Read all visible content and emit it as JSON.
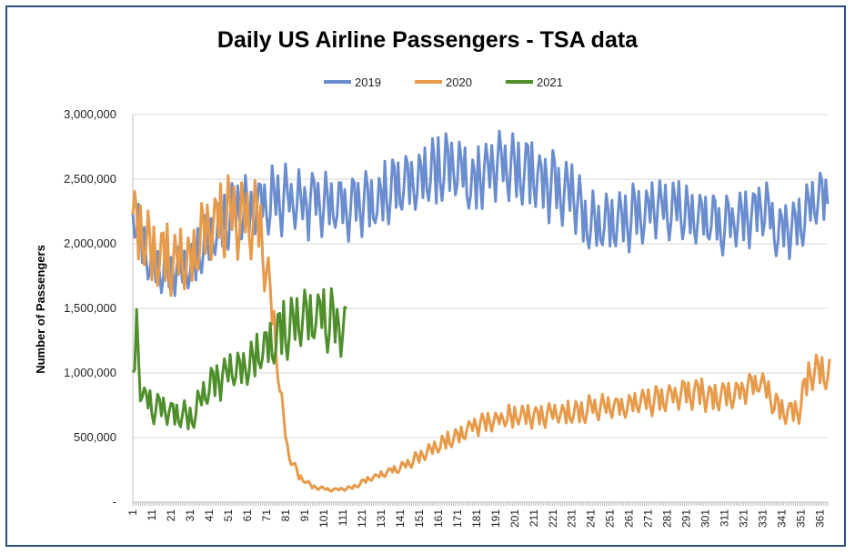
{
  "chart_data": {
    "type": "line",
    "title": "Daily US Airline Passengers - TSA data",
    "xlabel": "",
    "ylabel": "Number of Passengers",
    "xlim": [
      1,
      365
    ],
    "ylim": [
      0,
      3000000
    ],
    "x_tick_start": 1,
    "x_tick_step": 10,
    "x_tick_labels": [
      "1",
      "11",
      "21",
      "31",
      "41",
      "51",
      "61",
      "71",
      "81",
      "91",
      "101",
      "111",
      "121",
      "131",
      "141",
      "151",
      "161",
      "171",
      "181",
      "191",
      "201",
      "211",
      "221",
      "231",
      "241",
      "251",
      "261",
      "271",
      "281",
      "291",
      "301",
      "311",
      "321",
      "331",
      "341",
      "351",
      "361"
    ],
    "y_ticks": [
      0,
      500000,
      1000000,
      1500000,
      2000000,
      2500000,
      3000000
    ],
    "y_tick_labels": [
      "-",
      "500,000",
      "1,000,000",
      "1,500,000",
      "2,000,000",
      "2,500,000",
      "3,000,000"
    ],
    "legend_position": "top-center",
    "grid": true,
    "series": [
      {
        "name": "2019",
        "color": "#6a8dcf",
        "length": 365,
        "weekly_amplitude": 0.08,
        "noise": 0.03,
        "anchors": [
          [
            1,
            2250000
          ],
          [
            10,
            1850000
          ],
          [
            20,
            1800000
          ],
          [
            30,
            1820000
          ],
          [
            40,
            2000000
          ],
          [
            50,
            2200000
          ],
          [
            60,
            2250000
          ],
          [
            70,
            2300000
          ],
          [
            80,
            2350000
          ],
          [
            90,
            2300000
          ],
          [
            100,
            2350000
          ],
          [
            110,
            2300000
          ],
          [
            120,
            2300000
          ],
          [
            130,
            2350000
          ],
          [
            140,
            2450000
          ],
          [
            150,
            2450000
          ],
          [
            160,
            2550000
          ],
          [
            170,
            2600000
          ],
          [
            180,
            2450000
          ],
          [
            190,
            2620000
          ],
          [
            200,
            2600000
          ],
          [
            210,
            2550000
          ],
          [
            220,
            2450000
          ],
          [
            230,
            2400000
          ],
          [
            240,
            2150000
          ],
          [
            250,
            2150000
          ],
          [
            260,
            2200000
          ],
          [
            270,
            2250000
          ],
          [
            280,
            2300000
          ],
          [
            290,
            2250000
          ],
          [
            300,
            2200000
          ],
          [
            310,
            2150000
          ],
          [
            320,
            2150000
          ],
          [
            330,
            2300000
          ],
          [
            340,
            2100000
          ],
          [
            350,
            2200000
          ],
          [
            360,
            2350000
          ],
          [
            365,
            2350000
          ]
        ]
      },
      {
        "name": "2020",
        "color": "#e69a4a",
        "length": 366,
        "weekly_amplitude": 0.1,
        "noise": 0.04,
        "anchors": [
          [
            1,
            2200000
          ],
          [
            10,
            1950000
          ],
          [
            20,
            1900000
          ],
          [
            30,
            1850000
          ],
          [
            40,
            2100000
          ],
          [
            50,
            2250000
          ],
          [
            60,
            2200000
          ],
          [
            66,
            2150000
          ],
          [
            70,
            1900000
          ],
          [
            74,
            1500000
          ],
          [
            78,
            900000
          ],
          [
            82,
            400000
          ],
          [
            88,
            200000
          ],
          [
            95,
            120000
          ],
          [
            105,
            95000
          ],
          [
            115,
            110000
          ],
          [
            125,
            180000
          ],
          [
            135,
            230000
          ],
          [
            145,
            300000
          ],
          [
            155,
            380000
          ],
          [
            165,
            470000
          ],
          [
            175,
            550000
          ],
          [
            185,
            620000
          ],
          [
            195,
            650000
          ],
          [
            205,
            660000
          ],
          [
            215,
            680000
          ],
          [
            225,
            690000
          ],
          [
            235,
            700000
          ],
          [
            245,
            730000
          ],
          [
            255,
            740000
          ],
          [
            265,
            760000
          ],
          [
            275,
            790000
          ],
          [
            285,
            830000
          ],
          [
            295,
            850000
          ],
          [
            305,
            820000
          ],
          [
            315,
            840000
          ],
          [
            325,
            900000
          ],
          [
            330,
            950000
          ],
          [
            336,
            760000
          ],
          [
            345,
            700000
          ],
          [
            350,
            720000
          ],
          [
            355,
            980000
          ],
          [
            360,
            1000000
          ],
          [
            366,
            1000000
          ]
        ]
      },
      {
        "name": "2021",
        "color": "#4f8f2b",
        "length": 113,
        "weekly_amplitude": 0.12,
        "noise": 0.05,
        "anchors": [
          [
            1,
            900000
          ],
          [
            3,
            1300000
          ],
          [
            6,
            800000
          ],
          [
            15,
            720000
          ],
          [
            25,
            680000
          ],
          [
            32,
            650000
          ],
          [
            40,
            880000
          ],
          [
            50,
            980000
          ],
          [
            60,
            1050000
          ],
          [
            70,
            1180000
          ],
          [
            75,
            1260000
          ],
          [
            80,
            1350000
          ],
          [
            90,
            1400000
          ],
          [
            100,
            1420000
          ],
          [
            113,
            1350000
          ]
        ]
      }
    ]
  }
}
